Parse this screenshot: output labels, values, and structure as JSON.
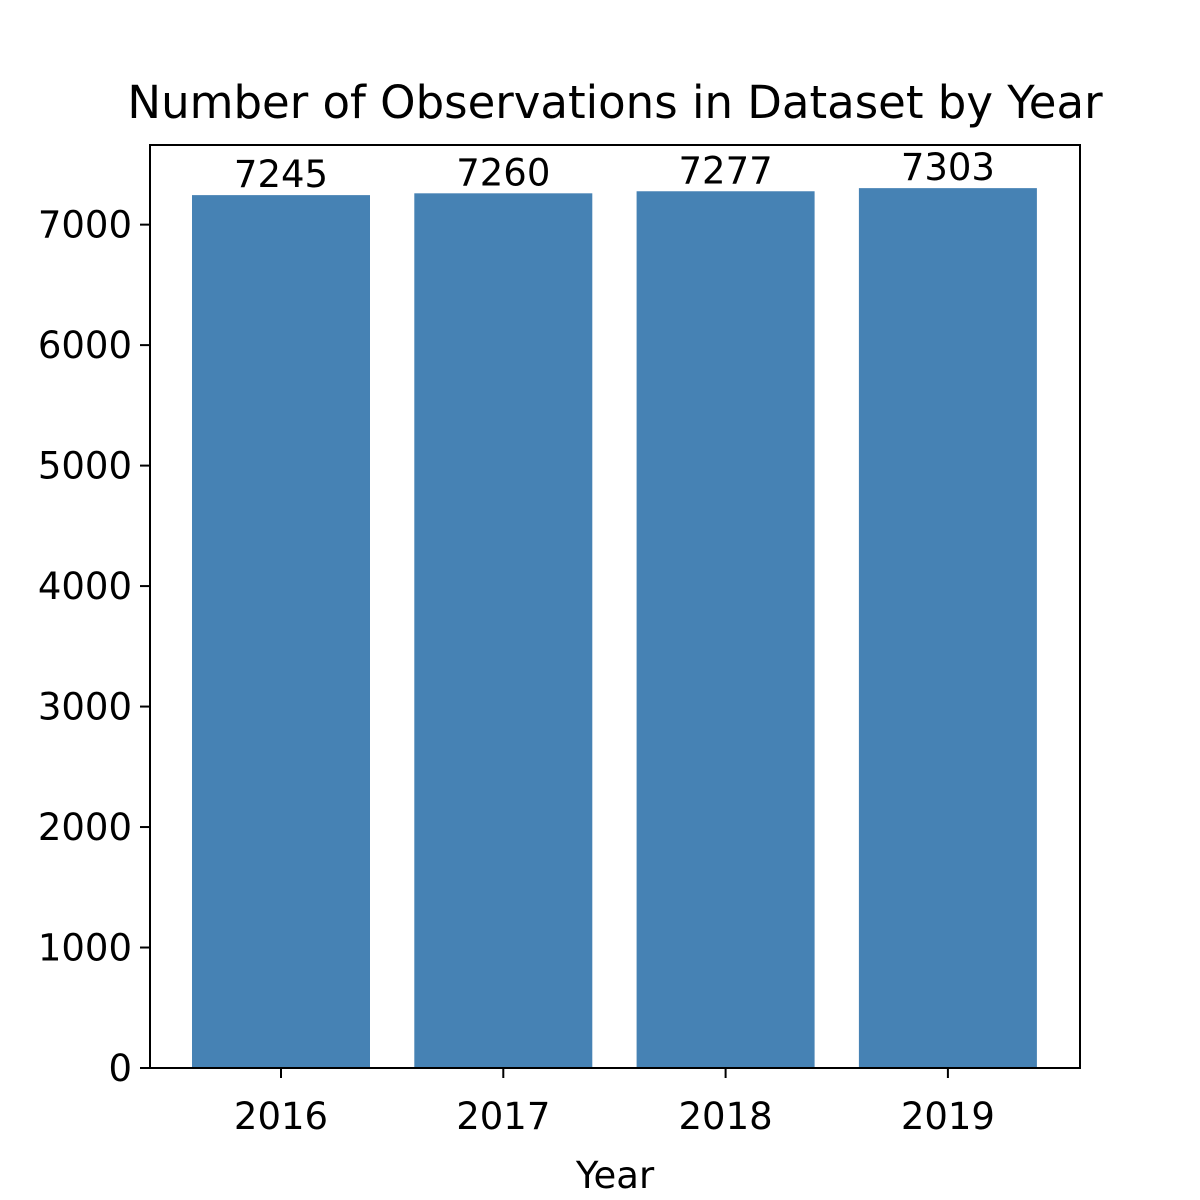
{
  "chart_data": {
    "type": "bar",
    "title": "Number of Observations in Dataset by Year",
    "xlabel": "Year",
    "ylabel": "",
    "categories": [
      "2016",
      "2017",
      "2018",
      "2019"
    ],
    "values": [
      7245,
      7260,
      7277,
      7303
    ],
    "data_labels": [
      "7245",
      "7260",
      "7277",
      "7303"
    ],
    "ylim": [
      0,
      7661
    ],
    "yticks": [
      0,
      1000,
      2000,
      3000,
      4000,
      5000,
      6000,
      7000
    ],
    "grid": false,
    "legend": "none",
    "bar_color": "#4682b4"
  }
}
